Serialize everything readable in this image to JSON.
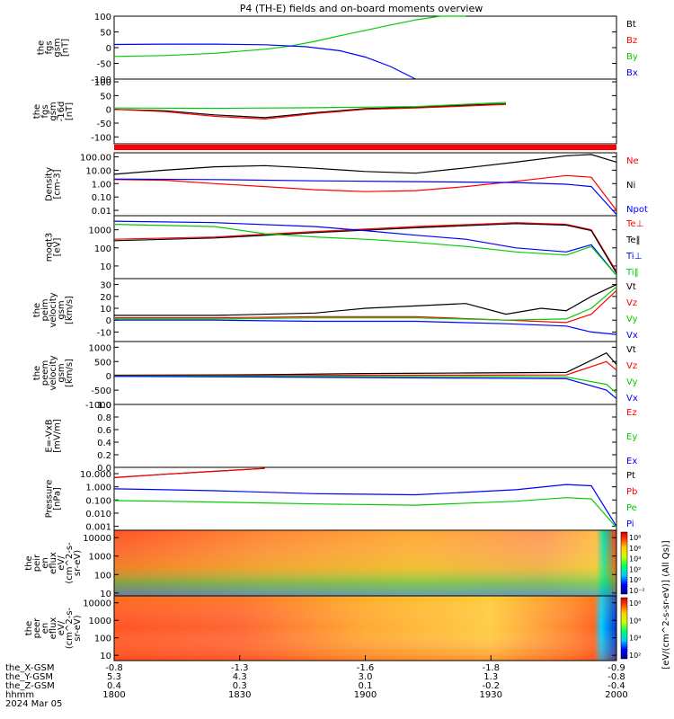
{
  "title": "P4 (TH-E) fields and on-board moments overview",
  "chart_data": [
    {
      "id": "fgs",
      "type": "line",
      "ylabel": [
        "the",
        "fgs",
        "gsm",
        "[nT]"
      ],
      "ylim": [
        -100,
        100
      ],
      "yticks": [
        "100",
        "50",
        "0",
        "-50",
        "-100"
      ],
      "legend": [
        {
          "name": "Bt",
          "color": "#000000"
        },
        {
          "name": "Bz",
          "color": "#ff0000"
        },
        {
          "name": "By",
          "color": "#00cc00"
        },
        {
          "name": "Bx",
          "color": "#0000ff"
        }
      ],
      "series": [
        {
          "name": "By",
          "color": "#00cc00",
          "x": [
            0,
            0.1,
            0.2,
            0.3,
            0.35,
            0.4,
            0.45,
            0.5,
            0.55,
            0.6,
            0.65,
            0.7
          ],
          "y": [
            -28,
            -25,
            -18,
            -5,
            5,
            20,
            38,
            55,
            72,
            88,
            100,
            110
          ]
        },
        {
          "name": "Bx",
          "color": "#0000ff",
          "x": [
            0,
            0.1,
            0.2,
            0.3,
            0.38,
            0.45,
            0.5,
            0.55,
            0.6
          ],
          "y": [
            10,
            11,
            11,
            9,
            3,
            -10,
            -30,
            -60,
            -105
          ]
        }
      ]
    },
    {
      "id": "fgs-dot",
      "type": "line",
      "ylabel": [
        "the",
        "fgs",
        "gsm",
        "-16d",
        "[nT]"
      ],
      "ylim": [
        -125,
        110
      ],
      "yticks": [
        "100",
        "50",
        "0",
        "-50",
        "-100"
      ],
      "legend": [],
      "series": [
        {
          "name": "Bt",
          "color": "#000000",
          "x": [
            0,
            0.1,
            0.2,
            0.3,
            0.4,
            0.5,
            0.6,
            0.7,
            0.78
          ],
          "y": [
            0,
            -5,
            -20,
            -30,
            -12,
            3,
            8,
            15,
            20
          ]
        },
        {
          "name": "Bz",
          "color": "#ff0000",
          "x": [
            0,
            0.1,
            0.2,
            0.3,
            0.4,
            0.5,
            0.6,
            0.7,
            0.78
          ],
          "y": [
            0,
            -8,
            -25,
            -35,
            -15,
            0,
            5,
            12,
            18
          ]
        },
        {
          "name": "By",
          "color": "#00cc00",
          "x": [
            0,
            0.2,
            0.4,
            0.6,
            0.78
          ],
          "y": [
            5,
            4,
            6,
            10,
            25
          ]
        }
      ]
    },
    {
      "id": "density",
      "type": "line",
      "ylabel": [
        "Density",
        "[cm-3]"
      ],
      "ylim_log": [
        0.004,
        200
      ],
      "yticks": [
        "100.00",
        "10.00",
        "1.00",
        "0.10",
        "0.01"
      ],
      "legend": [
        {
          "name": "Ne",
          "color": "#ff0000"
        },
        {
          "name": "Ni",
          "color": "#000000"
        },
        {
          "name": "Npot",
          "color": "#0000ff"
        }
      ],
      "series": [
        {
          "name": "Ni",
          "color": "#000000",
          "x": [
            0,
            0.1,
            0.2,
            0.3,
            0.4,
            0.5,
            0.6,
            0.7,
            0.8,
            0.9,
            0.95,
            1.0
          ],
          "y": [
            5,
            10,
            18,
            22,
            14,
            8,
            6,
            15,
            40,
            120,
            150,
            40
          ]
        },
        {
          "name": "Ne",
          "color": "#ff0000",
          "x": [
            0,
            0.1,
            0.2,
            0.3,
            0.4,
            0.5,
            0.6,
            0.7,
            0.8,
            0.9,
            0.95,
            1.0
          ],
          "y": [
            2,
            1.8,
            1,
            0.6,
            0.35,
            0.25,
            0.3,
            0.6,
            1.5,
            4,
            3,
            0.01
          ]
        },
        {
          "name": "Npot",
          "color": "#0000ff",
          "x": [
            0,
            0.2,
            0.4,
            0.6,
            0.8,
            0.9,
            0.95,
            1.0
          ],
          "y": [
            2.2,
            2,
            1.6,
            1.4,
            1.2,
            0.9,
            0.6,
            0.005
          ]
        }
      ]
    },
    {
      "id": "temperature",
      "type": "line",
      "ylabel": [
        "moqt3",
        "[eV]"
      ],
      "ylim_log": [
        2,
        6000
      ],
      "yticks": [
        "1000",
        "100",
        "10"
      ],
      "legend": [
        {
          "name": "Te⊥",
          "color": "#ff0000"
        },
        {
          "name": "Te‖",
          "color": "#000000"
        },
        {
          "name": "Ti⊥",
          "color": "#0000ff"
        },
        {
          "name": "Ti‖",
          "color": "#00cc00"
        }
      ],
      "series": [
        {
          "name": "Te⊥",
          "color": "#ff0000",
          "x": [
            0,
            0.2,
            0.4,
            0.6,
            0.8,
            0.9,
            0.95,
            1.0
          ],
          "y": [
            300,
            400,
            800,
            1500,
            2500,
            2000,
            1000,
            5
          ]
        },
        {
          "name": "Te‖",
          "color": "#000000",
          "x": [
            0,
            0.2,
            0.4,
            0.6,
            0.8,
            0.9,
            0.95,
            1.0
          ],
          "y": [
            250,
            350,
            700,
            1300,
            2200,
            1800,
            900,
            4
          ]
        },
        {
          "name": "Ti⊥",
          "color": "#0000ff",
          "x": [
            0,
            0.2,
            0.4,
            0.5,
            0.6,
            0.7,
            0.8,
            0.9,
            0.95,
            1.0
          ],
          "y": [
            3000,
            2500,
            1500,
            900,
            500,
            300,
            100,
            60,
            150,
            3
          ]
        },
        {
          "name": "Ti‖",
          "color": "#00cc00",
          "x": [
            0,
            0.2,
            0.3,
            0.4,
            0.5,
            0.6,
            0.7,
            0.8,
            0.9,
            0.95,
            1.0
          ],
          "y": [
            2000,
            1500,
            600,
            400,
            300,
            200,
            120,
            60,
            40,
            120,
            3
          ]
        }
      ]
    },
    {
      "id": "peim-velocity",
      "type": "line",
      "ylabel": [
        "the",
        "peim",
        "velocity",
        "gsm",
        "[km/s]"
      ],
      "ylim": [
        -18,
        35
      ],
      "yticks": [
        "30",
        "20",
        "10",
        "0",
        "-10"
      ],
      "legend": [
        {
          "name": "Vt",
          "color": "#000000"
        },
        {
          "name": "Vz",
          "color": "#ff0000"
        },
        {
          "name": "Vy",
          "color": "#00cc00"
        },
        {
          "name": "Vx",
          "color": "#0000ff"
        }
      ],
      "series": [
        {
          "name": "Vt",
          "color": "#000000",
          "x": [
            0,
            0.2,
            0.4,
            0.5,
            0.6,
            0.7,
            0.78,
            0.85,
            0.9,
            0.95,
            1.0
          ],
          "y": [
            4,
            4,
            6,
            10,
            12,
            14,
            5,
            10,
            8,
            20,
            30
          ]
        },
        {
          "name": "Vz",
          "color": "#ff0000",
          "x": [
            0,
            0.2,
            0.4,
            0.6,
            0.78,
            0.9,
            0.95,
            1.0
          ],
          "y": [
            2,
            2,
            3,
            3,
            0,
            -2,
            5,
            25
          ]
        },
        {
          "name": "Vy",
          "color": "#00cc00",
          "x": [
            0,
            0.2,
            0.4,
            0.6,
            0.78,
            0.9,
            0.95,
            1.0
          ],
          "y": [
            1,
            1,
            2,
            2,
            0,
            1,
            10,
            28
          ]
        },
        {
          "name": "Vx",
          "color": "#0000ff",
          "x": [
            0,
            0.2,
            0.4,
            0.6,
            0.78,
            0.9,
            0.95,
            1.0
          ],
          "y": [
            0,
            0,
            -1,
            -1,
            -3,
            -5,
            -10,
            -12
          ]
        }
      ]
    },
    {
      "id": "peem-velocity",
      "type": "line",
      "ylabel": [
        "the",
        "peem",
        "velocity",
        "gsm",
        "[km/s]"
      ],
      "ylim": [
        -1000,
        1200
      ],
      "yticks": [
        "1000",
        "500",
        "0",
        "-500",
        "-1000"
      ],
      "legend": [
        {
          "name": "Vt",
          "color": "#000000"
        },
        {
          "name": "Vz",
          "color": "#ff0000"
        },
        {
          "name": "Vy",
          "color": "#00cc00"
        },
        {
          "name": "Vx",
          "color": "#0000ff"
        }
      ],
      "series": [
        {
          "name": "Vt",
          "color": "#000000",
          "x": [
            0,
            0.3,
            0.5,
            0.7,
            0.9,
            0.98,
            1.0
          ],
          "y": [
            20,
            40,
            80,
            100,
            120,
            800,
            400
          ]
        },
        {
          "name": "Vz",
          "color": "#ff0000",
          "x": [
            0,
            0.3,
            0.5,
            0.7,
            0.9,
            0.98,
            1.0
          ],
          "y": [
            0,
            10,
            20,
            20,
            30,
            500,
            200
          ]
        },
        {
          "name": "Vy",
          "color": "#00cc00",
          "x": [
            0,
            0.3,
            0.5,
            0.7,
            0.9,
            0.98,
            1.0
          ],
          "y": [
            -10,
            -10,
            -20,
            -30,
            -40,
            -300,
            -600
          ]
        },
        {
          "name": "Vx",
          "color": "#0000ff",
          "x": [
            0,
            0.3,
            0.5,
            0.7,
            0.9,
            0.98,
            1.0
          ],
          "y": [
            -20,
            -40,
            -60,
            -80,
            -100,
            -500,
            -800
          ]
        }
      ]
    },
    {
      "id": "efield",
      "type": "line",
      "ylabel": [
        "E=-VxB",
        "[mV/m]"
      ],
      "ylim": [
        0,
        1
      ],
      "yticks": [
        "1.0",
        "0.8",
        "0.6",
        "0.4",
        "0.2",
        "0.0"
      ],
      "legend": [
        {
          "name": "Ez",
          "color": "#ff0000"
        },
        {
          "name": "Ey",
          "color": "#00cc00"
        },
        {
          "name": "Ex",
          "color": "#0000ff"
        }
      ],
      "series": []
    },
    {
      "id": "pressure",
      "type": "line",
      "ylabel": [
        "Pressure",
        "[nPa]"
      ],
      "ylim_log": [
        0.0005,
        30
      ],
      "yticks": [
        "10.000",
        "1.000",
        "0.100",
        "0.010",
        "0.001"
      ],
      "legend": [
        {
          "name": "Pt",
          "color": "#000000"
        },
        {
          "name": "Pb",
          "color": "#ff0000"
        },
        {
          "name": "Pe",
          "color": "#00cc00"
        },
        {
          "name": "Pi",
          "color": "#0000ff"
        }
      ],
      "series": [
        {
          "name": "Pt",
          "color": "#000000",
          "x": [
            0,
            0.1,
            0.2,
            0.3
          ],
          "y": [
            5,
            9,
            15,
            25
          ]
        },
        {
          "name": "Pb",
          "color": "#ff0000",
          "x": [
            0,
            0.1,
            0.2,
            0.3
          ],
          "y": [
            5,
            9,
            15,
            25
          ]
        },
        {
          "name": "Pi",
          "color": "#0000ff",
          "x": [
            0,
            0.1,
            0.2,
            0.4,
            0.6,
            0.8,
            0.9,
            0.95,
            1.0
          ],
          "y": [
            0.7,
            0.6,
            0.5,
            0.3,
            0.25,
            0.6,
            1.5,
            1.2,
            0.001
          ]
        },
        {
          "name": "Pe",
          "color": "#00cc00",
          "x": [
            0,
            0.1,
            0.2,
            0.4,
            0.6,
            0.8,
            0.9,
            0.95,
            1.0
          ],
          "y": [
            0.09,
            0.08,
            0.07,
            0.05,
            0.04,
            0.08,
            0.15,
            0.12,
            0.0008
          ]
        }
      ]
    },
    {
      "id": "peir-eflux",
      "type": "heatmap",
      "ylabel": [
        "the",
        "peir",
        "en",
        "eflux",
        "eV/",
        "(cm^2-s-",
        "sr-eV)"
      ],
      "ylim_log": [
        7,
        25000
      ],
      "yticks": [
        "10000",
        "1000",
        "100",
        "10"
      ],
      "colorbar_ticks": [
        "10⁸",
        "10⁶",
        "10⁴",
        "10²",
        "10⁰",
        "10⁻²"
      ]
    },
    {
      "id": "peer-eflux",
      "type": "heatmap",
      "ylabel": [
        "the",
        "peer",
        "en",
        "eflux",
        "eV/",
        "(cm^2-s-",
        "sr-eV)"
      ],
      "ylim_log": [
        5,
        25000
      ],
      "yticks": [
        "10000",
        "1000",
        "100",
        "10"
      ],
      "colorbar_ticks": [
        "10⁸",
        "10⁶",
        "10⁴",
        "10²"
      ]
    }
  ],
  "colorbar_label": "[eV/(cm^2-s-sr-eV)] (All Qs)]",
  "x_axis": {
    "rows": [
      {
        "label": "the_X-GSM",
        "values": [
          "-0.8",
          "-1.3",
          "-1.6",
          "-1.8",
          "-0.9"
        ]
      },
      {
        "label": "the_Y-GSM",
        "values": [
          "5.3",
          "4.3",
          "3.0",
          "1.3",
          "-0.8"
        ]
      },
      {
        "label": "the_Z-GSM",
        "values": [
          "0.4",
          "0.3",
          "0.1",
          "-0.2",
          "-0.4"
        ]
      },
      {
        "label": "hhmm",
        "values": [
          "1800",
          "1830",
          "1900",
          "1930",
          "2000"
        ]
      }
    ],
    "date": "2024 Mar 05"
  }
}
